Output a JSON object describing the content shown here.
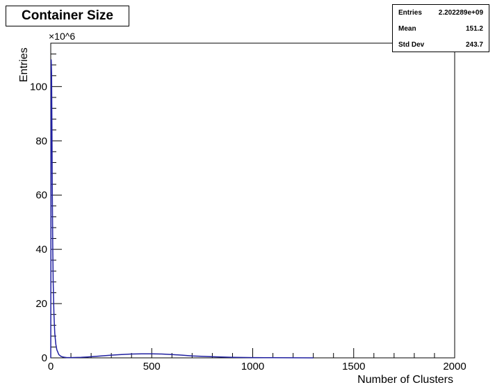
{
  "colors": {
    "line": "#1f1fa0",
    "axis": "#000000",
    "background": "#ffffff"
  },
  "title_box": {
    "text": "Container Size"
  },
  "stats": [
    {
      "label": "Entries",
      "value": "2.202289e+09"
    },
    {
      "label": "Mean",
      "value": "151.2"
    },
    {
      "label": "Std Dev",
      "value": "243.7"
    }
  ],
  "chart_data": {
    "type": "line",
    "title": "Container Size",
    "xlabel": "Number of Clusters",
    "ylabel": "Entries",
    "y_multiplier": "×10^6",
    "xlim": [
      0,
      2000
    ],
    "ylim": [
      0,
      116
    ],
    "x_ticks": [
      0,
      500,
      1000,
      1500,
      2000
    ],
    "y_ticks": [
      0,
      20,
      40,
      60,
      80,
      100
    ],
    "grid": false,
    "series": [
      {
        "x": [
          0,
          2,
          4,
          6,
          8,
          10,
          12,
          16,
          20,
          25,
          30,
          40,
          50,
          60,
          70,
          80,
          100,
          150,
          200,
          250,
          300,
          350,
          400,
          450,
          500,
          550,
          600,
          650,
          700,
          800,
          900,
          1000,
          1100,
          1200,
          1300
        ],
        "values": [
          0,
          110,
          105,
          85,
          60,
          40,
          28,
          16,
          9,
          5,
          3,
          1.2,
          0.6,
          0.3,
          0.2,
          0.1,
          0.1,
          0.2,
          0.4,
          0.7,
          1.0,
          1.2,
          1.4,
          1.5,
          1.5,
          1.4,
          1.2,
          1.0,
          0.7,
          0.4,
          0.2,
          0.1,
          0.06,
          0.03,
          0.01
        ]
      }
    ]
  }
}
